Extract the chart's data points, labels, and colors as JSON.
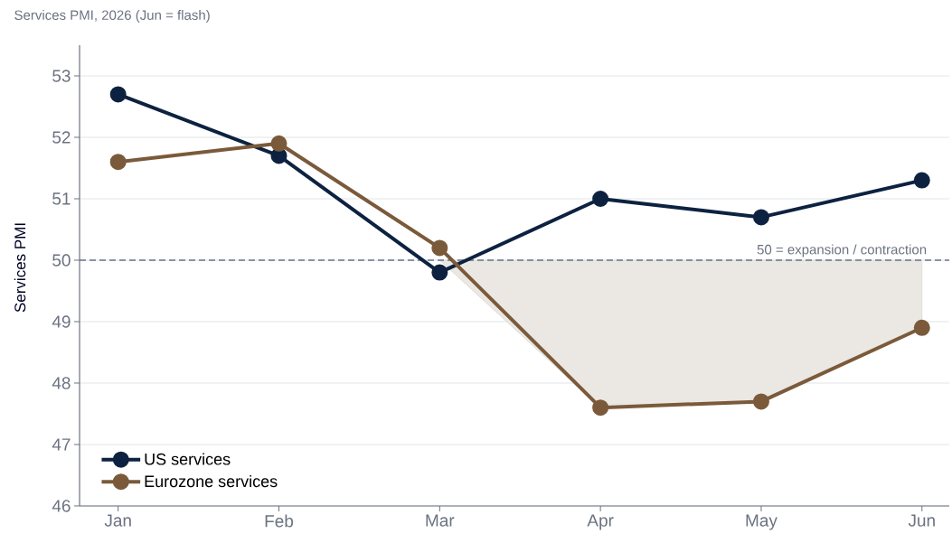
{
  "chart_data": {
    "type": "line",
    "title": "Services PMI, 2026 (Jun = flash)",
    "ylabel": "Services PMI",
    "categories": [
      "Jan",
      "Feb",
      "Mar",
      "Apr",
      "May",
      "Jun"
    ],
    "series": [
      {
        "name": "US services",
        "color": "#0d2240",
        "values": [
          52.7,
          51.7,
          49.8,
          51.0,
          50.7,
          51.3
        ]
      },
      {
        "name": "Eurozone services",
        "color": "#7a5a3a",
        "values": [
          51.6,
          51.9,
          50.2,
          47.6,
          47.7,
          48.9
        ],
        "lower": [
          null,
          null,
          50,
          47.6,
          47.7,
          48.9
        ],
        "upper": [
          null,
          null,
          50,
          50,
          50,
          50
        ]
      }
    ],
    "ylim": [
      46,
      53.5
    ],
    "yticks": [
      46,
      47,
      48,
      49,
      50,
      51,
      52,
      53
    ],
    "ref_lines": [
      {
        "axis": "y",
        "value": 50,
        "label": "50 = expansion / contraction",
        "color": "#64748b",
        "line_style": "dashed"
      }
    ],
    "grid": "y",
    "legend": "bottom left",
    "marker": "circle",
    "line_style": "solid"
  }
}
